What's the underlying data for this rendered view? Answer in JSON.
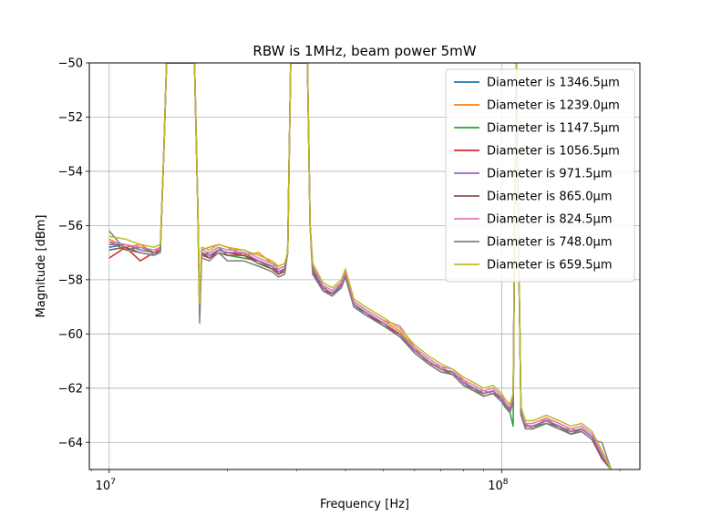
{
  "chart_data": {
    "type": "line",
    "title": "RBW is 1MHz, beam power 5mW",
    "xlabel": "Frequency [Hz]",
    "ylabel": "Magnitude [dBm]",
    "xscale": "log",
    "xlim": [
      8900000,
      225000000
    ],
    "ylim": [
      -65,
      -50
    ],
    "x_ticks": [
      {
        "value": 10000000,
        "base": "10",
        "exp": "7"
      },
      {
        "value": 100000000,
        "base": "10",
        "exp": "8"
      }
    ],
    "y_ticks": [
      {
        "value": -64,
        "label": "−64"
      },
      {
        "value": -62,
        "label": "−62"
      },
      {
        "value": -60,
        "label": "−60"
      },
      {
        "value": -58,
        "label": "−58"
      },
      {
        "value": -56,
        "label": "−56"
      },
      {
        "value": -54,
        "label": "−54"
      },
      {
        "value": -52,
        "label": "−52"
      },
      {
        "value": -50,
        "label": "−50"
      }
    ],
    "grid": true,
    "legend_position": "top-right",
    "x": [
      10000000,
      11000000,
      12000000,
      13000000,
      13500000,
      13800000,
      14000000,
      15000000,
      16000000,
      16500000,
      16800000,
      17000000,
      17200000,
      18000000,
      19000000,
      20000000,
      22000000,
      24000000,
      26000000,
      27000000,
      28000000,
      28500000,
      29000000,
      30000000,
      31000000,
      32000000,
      32500000,
      33000000,
      35000000,
      37000000,
      39000000,
      40000000,
      42000000,
      45000000,
      50000000,
      55000000,
      60000000,
      65000000,
      70000000,
      75000000,
      80000000,
      85000000,
      90000000,
      95000000,
      100000000,
      102000000,
      105000000,
      107000000,
      108000000,
      109000000,
      110000000,
      112000000,
      115000000,
      120000000,
      130000000,
      140000000,
      150000000,
      160000000,
      170000000,
      180000000,
      190000000
    ],
    "series": [
      {
        "name": "Diameter is 1346.5μm",
        "color": "#1f77b4",
        "values": [
          -56.8,
          -56.7,
          -56.9,
          -57.0,
          -56.9,
          -53,
          -50,
          -50,
          -50,
          -50,
          -55,
          -59.1,
          -57.0,
          -57.1,
          -56.9,
          -57.0,
          -57.0,
          -57.3,
          -57.5,
          -57.7,
          -57.6,
          -57.0,
          -50,
          -50,
          -50,
          -50,
          -56,
          -57.6,
          -58.3,
          -58.5,
          -58.2,
          -57.8,
          -58.9,
          -59.2,
          -59.6,
          -60.0,
          -60.6,
          -61.0,
          -61.3,
          -61.4,
          -61.8,
          -62.0,
          -62.2,
          -62.1,
          -62.4,
          -62.6,
          -62.8,
          -62.4,
          -55,
          -50,
          -55,
          -62.9,
          -63.4,
          -63.4,
          -63.2,
          -63.4,
          -63.6,
          -63.5,
          -63.8,
          -64.5,
          -65
        ]
      },
      {
        "name": "Diameter is 1239.0μm",
        "color": "#ff7f0e",
        "values": [
          -56.5,
          -56.8,
          -56.7,
          -57.0,
          -56.8,
          -53,
          -50,
          -50,
          -50,
          -50,
          -55,
          -59.0,
          -56.9,
          -56.8,
          -56.7,
          -56.8,
          -57.1,
          -57.0,
          -57.4,
          -57.5,
          -57.4,
          -57.0,
          -50,
          -50,
          -50,
          -50,
          -56,
          -57.5,
          -58.2,
          -58.6,
          -58.1,
          -57.7,
          -58.8,
          -59.1,
          -59.5,
          -59.9,
          -60.5,
          -61.1,
          -61.2,
          -61.5,
          -61.7,
          -62.1,
          -62.1,
          -62.2,
          -62.3,
          -62.7,
          -62.7,
          -62.5,
          -55,
          -50,
          -55,
          -63.0,
          -63.3,
          -63.5,
          -63.1,
          -63.5,
          -63.5,
          -63.6,
          -63.9,
          -64.4,
          -65
        ]
      },
      {
        "name": "Diameter is 1147.5μm",
        "color": "#2ca02c",
        "values": [
          -56.6,
          -56.9,
          -56.8,
          -57.0,
          -56.9,
          -53,
          -50,
          -50,
          -50,
          -50,
          -55,
          -59.1,
          -57.1,
          -57.0,
          -56.8,
          -57.1,
          -57.2,
          -57.3,
          -57.6,
          -57.6,
          -57.5,
          -57.0,
          -50,
          -50,
          -50,
          -50,
          -56,
          -57.6,
          -58.3,
          -58.5,
          -58.3,
          -57.8,
          -58.9,
          -59.3,
          -59.6,
          -60.1,
          -60.6,
          -61.0,
          -61.3,
          -61.5,
          -61.9,
          -62.0,
          -62.3,
          -62.2,
          -62.4,
          -62.6,
          -62.9,
          -63.4,
          -55,
          -50,
          -55,
          -63.0,
          -63.4,
          -63.4,
          -63.3,
          -63.4,
          -63.7,
          -63.5,
          -63.8,
          -64.6,
          -65
        ]
      },
      {
        "name": "Diameter is 1056.5μm",
        "color": "#d62728",
        "values": [
          -57.2,
          -56.8,
          -57.3,
          -57.0,
          -56.9,
          -53,
          -50,
          -50,
          -50,
          -50,
          -55,
          -59.2,
          -57.0,
          -57.2,
          -56.9,
          -57.0,
          -57.1,
          -57.3,
          -57.5,
          -57.8,
          -57.6,
          -57.0,
          -50,
          -50,
          -50,
          -50,
          -56,
          -57.4,
          -58.4,
          -58.5,
          -58.2,
          -57.9,
          -58.9,
          -59.2,
          -59.7,
          -60.0,
          -60.6,
          -61.0,
          -61.3,
          -61.4,
          -61.8,
          -62.0,
          -62.2,
          -62.1,
          -62.4,
          -62.6,
          -62.8,
          -62.4,
          -55,
          -50,
          -55,
          -62.9,
          -63.4,
          -63.4,
          -63.2,
          -63.4,
          -63.6,
          -63.5,
          -63.8,
          -64.5,
          -65
        ]
      },
      {
        "name": "Diameter is 971.5μm",
        "color": "#9467bd",
        "values": [
          -56.7,
          -56.7,
          -56.9,
          -57.0,
          -56.9,
          -53,
          -50,
          -50,
          -50,
          -50,
          -55,
          -59.0,
          -57.0,
          -57.1,
          -56.9,
          -57.0,
          -57.0,
          -57.3,
          -57.5,
          -57.7,
          -57.6,
          -57.0,
          -50,
          -50,
          -50,
          -50,
          -56,
          -57.6,
          -58.3,
          -58.5,
          -58.2,
          -57.8,
          -58.9,
          -59.2,
          -59.6,
          -60.0,
          -60.6,
          -61.0,
          -61.3,
          -61.4,
          -61.8,
          -62.0,
          -62.2,
          -62.1,
          -62.4,
          -62.6,
          -62.8,
          -62.4,
          -55,
          -50,
          -55,
          -62.9,
          -63.4,
          -63.4,
          -63.2,
          -63.4,
          -63.6,
          -63.5,
          -63.8,
          -64.5,
          -65
        ]
      },
      {
        "name": "Diameter is 865.0μm",
        "color": "#8c564b",
        "values": [
          -56.9,
          -56.8,
          -57.0,
          -57.1,
          -56.9,
          -53,
          -50,
          -50,
          -50,
          -50,
          -55,
          -59.1,
          -57.1,
          -57.2,
          -57.0,
          -57.1,
          -57.1,
          -57.4,
          -57.6,
          -57.8,
          -57.7,
          -57.0,
          -50,
          -50,
          -50,
          -50,
          -56,
          -57.7,
          -58.4,
          -58.6,
          -58.3,
          -57.9,
          -59.0,
          -59.3,
          -59.7,
          -60.1,
          -60.7,
          -61.1,
          -61.4,
          -61.5,
          -61.9,
          -62.1,
          -62.3,
          -62.2,
          -62.5,
          -62.7,
          -62.9,
          -62.5,
          -55,
          -50,
          -55,
          -63.0,
          -63.5,
          -63.5,
          -63.3,
          -63.5,
          -63.7,
          -63.6,
          -63.9,
          -64.6,
          -65
        ]
      },
      {
        "name": "Diameter is 824.5μm",
        "color": "#e377c2",
        "values": [
          -56.6,
          -56.7,
          -56.8,
          -56.9,
          -56.8,
          -53,
          -50,
          -50,
          -50,
          -50,
          -55,
          -59.0,
          -56.9,
          -57.0,
          -56.8,
          -56.9,
          -56.9,
          -57.2,
          -57.4,
          -57.6,
          -57.5,
          -57.0,
          -50,
          -50,
          -50,
          -50,
          -56,
          -57.5,
          -58.2,
          -58.4,
          -58.1,
          -57.7,
          -58.8,
          -59.1,
          -59.5,
          -59.7,
          -60.5,
          -60.9,
          -61.2,
          -61.3,
          -61.7,
          -61.9,
          -62.1,
          -62.0,
          -62.3,
          -62.5,
          -62.7,
          -62.3,
          -55,
          -50,
          -55,
          -62.8,
          -63.3,
          -63.3,
          -63.1,
          -63.3,
          -63.5,
          -63.4,
          -63.7,
          -64.4,
          -65
        ]
      },
      {
        "name": "Diameter is 748.0μm",
        "color": "#7f7f7f",
        "values": [
          -56.2,
          -56.9,
          -57.0,
          -57.1,
          -57.0,
          -53,
          -50,
          -50,
          -50,
          -50,
          -55,
          -59.6,
          -57.2,
          -57.3,
          -57.0,
          -57.3,
          -57.3,
          -57.5,
          -57.7,
          -57.9,
          -57.8,
          -57.0,
          -50,
          -50,
          -50,
          -50,
          -56,
          -57.8,
          -58.4,
          -58.6,
          -58.3,
          -57.9,
          -59.0,
          -59.3,
          -59.7,
          -60.1,
          -60.7,
          -61.1,
          -61.4,
          -61.5,
          -61.9,
          -62.1,
          -62.3,
          -62.2,
          -62.5,
          -62.7,
          -62.9,
          -62.5,
          -55,
          -50,
          -55,
          -63.0,
          -63.5,
          -63.5,
          -63.3,
          -63.5,
          -63.7,
          -63.6,
          -63.9,
          -64.0,
          -65
        ]
      },
      {
        "name": "Diameter is 659.5μm",
        "color": "#bcbd22",
        "values": [
          -56.4,
          -56.5,
          -56.7,
          -56.8,
          -56.7,
          -53,
          -50,
          -50,
          -50,
          -50,
          -55,
          -58.9,
          -56.8,
          -56.9,
          -56.7,
          -56.8,
          -56.9,
          -57.1,
          -57.3,
          -57.5,
          -57.4,
          -57.0,
          -50,
          -50,
          -50,
          -50,
          -56,
          -57.4,
          -58.1,
          -58.3,
          -58.0,
          -57.6,
          -58.7,
          -59.0,
          -59.4,
          -59.8,
          -60.4,
          -60.8,
          -61.1,
          -61.3,
          -61.6,
          -61.8,
          -62.0,
          -61.9,
          -62.2,
          -62.4,
          -62.6,
          -62.2,
          -55,
          -50,
          -55,
          -62.7,
          -63.2,
          -63.2,
          -63.0,
          -63.2,
          -63.4,
          -63.3,
          -63.6,
          -64.3,
          -65
        ]
      }
    ]
  }
}
